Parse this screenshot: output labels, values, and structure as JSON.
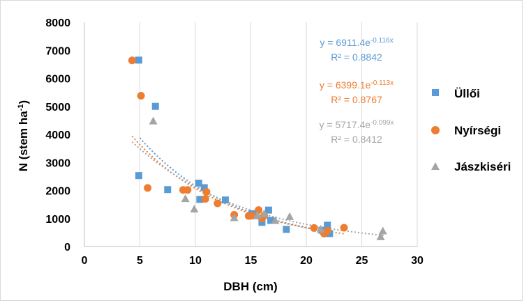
{
  "chart_data": {
    "type": "scatter",
    "xlabel": "DBH (cm)",
    "ylabel_main": "N (stem ha",
    "ylabel_sup": "-1",
    "ylabel_close": ")",
    "xlim": [
      0,
      30
    ],
    "ylim": [
      0,
      8000
    ],
    "x_ticks": [
      0,
      5,
      10,
      15,
      20,
      25,
      30
    ],
    "y_ticks": [
      0,
      1000,
      2000,
      3000,
      4000,
      5000,
      6000,
      7000,
      8000
    ],
    "x_tick_labels": [
      "0",
      "5",
      "10",
      "15",
      "20",
      "25",
      "30"
    ],
    "y_tick_labels": [
      "0",
      "1000",
      "2000",
      "3000",
      "4000",
      "5000",
      "6000",
      "7000",
      "8000"
    ],
    "grid": "vertical",
    "legend_position": "right",
    "series": [
      {
        "name": "Üllői",
        "marker": "square",
        "color": "#5b9bd5",
        "x": [
          4.9,
          6.4,
          4.9,
          7.5,
          10.3,
          10.8,
          10.4,
          12.7,
          15.1,
          15.4,
          16.0,
          16.6,
          16.8,
          18.2,
          21.4,
          21.9,
          22.1
        ],
        "y": [
          6650,
          5000,
          2530,
          2030,
          2260,
          2100,
          1680,
          1660,
          1170,
          1100,
          860,
          1300,
          930,
          610,
          580,
          760,
          460
        ],
        "fit": {
          "a": 6911.4,
          "b": -0.116,
          "x_from": 5,
          "x_to": 22.2,
          "color": "#5b9bd5"
        },
        "equation_base": "y = 6911.4e",
        "equation_exp": "-0.116x",
        "r2": "R² = 0.8842"
      },
      {
        "name": "Nyírségi",
        "marker": "circle",
        "color": "#ed7d31",
        "x": [
          4.3,
          5.1,
          5.7,
          8.9,
          9.3,
          10.9,
          11.0,
          12.0,
          13.5,
          14.8,
          15.1,
          15.7,
          16.0,
          16.2,
          20.7,
          21.6,
          21.9,
          23.4
        ],
        "y": [
          6640,
          5380,
          2090,
          2020,
          2020,
          1700,
          1950,
          1540,
          1130,
          1090,
          1100,
          1300,
          1000,
          1100,
          660,
          460,
          560,
          670
        ],
        "fit": {
          "a": 6399.1,
          "b": -0.113,
          "x_from": 4.3,
          "x_to": 23.4,
          "color": "#ed7d31"
        },
        "equation_base": "y = 6399.1e",
        "equation_exp": "-0.113x",
        "r2": "R² = 0.8767"
      },
      {
        "name": "Jászkiséri",
        "marker": "triangle",
        "color": "#a5a5a5",
        "x": [
          6.2,
          9.1,
          9.9,
          13.5,
          15.6,
          16.2,
          17.2,
          18.5,
          21.3,
          26.7,
          26.9
        ],
        "y": [
          4480,
          1710,
          1340,
          1030,
          1120,
          1170,
          930,
          1070,
          620,
          350,
          560
        ],
        "fit": {
          "a": 5717.4,
          "b": -0.099,
          "x_from": 4.3,
          "x_to": 27.0,
          "color": "#a5a5a5"
        },
        "equation_base": "y = 5717.4e",
        "equation_exp": "-0.099x",
        "r2": "R² = 0.8412"
      }
    ]
  }
}
